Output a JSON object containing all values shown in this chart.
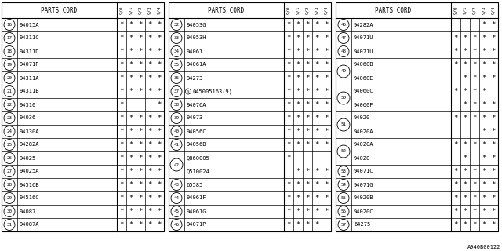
{
  "watermark": "A940B00122",
  "bg_color": "#ffffff",
  "col_headers": [
    "9/0",
    "9/1",
    "9/2",
    "9/3",
    "9/4"
  ],
  "panels": [
    {
      "rows": [
        {
          "num": "16",
          "part": "94015A",
          "marks": [
            1,
            1,
            1,
            1,
            1
          ],
          "group_start": true,
          "group_size": 1
        },
        {
          "num": "17",
          "part": "94311C",
          "marks": [
            1,
            1,
            1,
            1,
            1
          ],
          "group_start": true,
          "group_size": 1
        },
        {
          "num": "18",
          "part": "94311D",
          "marks": [
            1,
            1,
            1,
            1,
            1
          ],
          "group_start": true,
          "group_size": 1
        },
        {
          "num": "19",
          "part": "94071P",
          "marks": [
            1,
            1,
            1,
            1,
            1
          ],
          "group_start": true,
          "group_size": 1
        },
        {
          "num": "20",
          "part": "94311A",
          "marks": [
            1,
            1,
            1,
            1,
            1
          ],
          "group_start": true,
          "group_size": 1
        },
        {
          "num": "21",
          "part": "94311B",
          "marks": [
            1,
            1,
            1,
            1,
            1
          ],
          "group_start": true,
          "group_size": 1
        },
        {
          "num": "22",
          "part": "94310",
          "marks": [
            1,
            0,
            0,
            0,
            1
          ],
          "group_start": true,
          "group_size": 1
        },
        {
          "num": "23",
          "part": "94036",
          "marks": [
            1,
            1,
            1,
            1,
            1
          ],
          "group_start": true,
          "group_size": 1
        },
        {
          "num": "24",
          "part": "94330A",
          "marks": [
            1,
            1,
            1,
            1,
            1
          ],
          "group_start": true,
          "group_size": 1
        },
        {
          "num": "25",
          "part": "94282A",
          "marks": [
            1,
            1,
            1,
            1,
            1
          ],
          "group_start": true,
          "group_size": 1
        },
        {
          "num": "26",
          "part": "94025",
          "marks": [
            1,
            1,
            1,
            1,
            1
          ],
          "group_start": true,
          "group_size": 1
        },
        {
          "num": "27",
          "part": "94025A",
          "marks": [
            1,
            1,
            1,
            1,
            1
          ],
          "group_start": true,
          "group_size": 1
        },
        {
          "num": "28",
          "part": "94516B",
          "marks": [
            1,
            1,
            1,
            1,
            1
          ],
          "group_start": true,
          "group_size": 1
        },
        {
          "num": "29",
          "part": "94516C",
          "marks": [
            1,
            1,
            1,
            1,
            1
          ],
          "group_start": true,
          "group_size": 1
        },
        {
          "num": "30",
          "part": "94087",
          "marks": [
            1,
            1,
            1,
            1,
            1
          ],
          "group_start": true,
          "group_size": 1
        },
        {
          "num": "31",
          "part": "94087A",
          "marks": [
            1,
            1,
            1,
            1,
            1
          ],
          "group_start": true,
          "group_size": 1
        }
      ]
    },
    {
      "rows": [
        {
          "num": "32",
          "part": "94053G",
          "marks": [
            1,
            1,
            1,
            1,
            1
          ],
          "group_start": true,
          "group_size": 1,
          "special": false
        },
        {
          "num": "33",
          "part": "94053H",
          "marks": [
            1,
            1,
            1,
            1,
            1
          ],
          "group_start": true,
          "group_size": 1,
          "special": false
        },
        {
          "num": "34",
          "part": "94061",
          "marks": [
            1,
            1,
            1,
            1,
            1
          ],
          "group_start": true,
          "group_size": 1,
          "special": false
        },
        {
          "num": "35",
          "part": "94061A",
          "marks": [
            1,
            1,
            1,
            1,
            1
          ],
          "group_start": true,
          "group_size": 1,
          "special": false
        },
        {
          "num": "36",
          "part": "94273",
          "marks": [
            1,
            1,
            1,
            1,
            1
          ],
          "group_start": true,
          "group_size": 1,
          "special": false
        },
        {
          "num": "37",
          "part": "045005163(9)",
          "marks": [
            1,
            1,
            1,
            1,
            1
          ],
          "group_start": true,
          "group_size": 1,
          "special": true
        },
        {
          "num": "38",
          "part": "94076A",
          "marks": [
            1,
            1,
            1,
            1,
            1
          ],
          "group_start": true,
          "group_size": 1,
          "special": false
        },
        {
          "num": "39",
          "part": "94073",
          "marks": [
            1,
            1,
            1,
            1,
            1
          ],
          "group_start": true,
          "group_size": 1,
          "special": false
        },
        {
          "num": "40",
          "part": "94056C",
          "marks": [
            1,
            1,
            1,
            1,
            1
          ],
          "group_start": true,
          "group_size": 1,
          "special": false
        },
        {
          "num": "41",
          "part": "94056B",
          "marks": [
            1,
            1,
            1,
            1,
            1
          ],
          "group_start": true,
          "group_size": 1,
          "special": false
        },
        {
          "num": "42",
          "part": "Q860005",
          "marks": [
            1,
            0,
            0,
            0,
            0
          ],
          "group_start": true,
          "group_size": 2,
          "special": false
        },
        {
          "num": "42",
          "part": "Q510024",
          "marks": [
            0,
            1,
            1,
            1,
            1
          ],
          "group_start": false,
          "group_size": 2,
          "special": false
        },
        {
          "num": "43",
          "part": "65585",
          "marks": [
            1,
            1,
            1,
            1,
            1
          ],
          "group_start": true,
          "group_size": 1,
          "special": false
        },
        {
          "num": "44",
          "part": "94061F",
          "marks": [
            1,
            1,
            1,
            1,
            1
          ],
          "group_start": true,
          "group_size": 1,
          "special": false
        },
        {
          "num": "45",
          "part": "94061G",
          "marks": [
            1,
            1,
            1,
            1,
            1
          ],
          "group_start": true,
          "group_size": 1,
          "special": false
        },
        {
          "num": "46",
          "part": "94071P",
          "marks": [
            1,
            1,
            1,
            1,
            0
          ],
          "group_start": true,
          "group_size": 1,
          "special": false
        }
      ]
    },
    {
      "rows": [
        {
          "num": "46",
          "part": "94282A",
          "marks": [
            0,
            0,
            0,
            1,
            1
          ],
          "group_start": true,
          "group_size": 1
        },
        {
          "num": "47",
          "part": "94071U",
          "marks": [
            1,
            1,
            1,
            1,
            1
          ],
          "group_start": true,
          "group_size": 1
        },
        {
          "num": "48",
          "part": "94071U",
          "marks": [
            1,
            1,
            1,
            1,
            1
          ],
          "group_start": true,
          "group_size": 1
        },
        {
          "num": "49",
          "part": "94060B",
          "marks": [
            1,
            1,
            1,
            1,
            1
          ],
          "group_start": true,
          "group_size": 2
        },
        {
          "num": "49",
          "part": "94060E",
          "marks": [
            0,
            1,
            1,
            1,
            1
          ],
          "group_start": false,
          "group_size": 2
        },
        {
          "num": "50",
          "part": "94060C",
          "marks": [
            1,
            1,
            1,
            1,
            0
          ],
          "group_start": true,
          "group_size": 2
        },
        {
          "num": "50",
          "part": "94060F",
          "marks": [
            0,
            1,
            1,
            1,
            1
          ],
          "group_start": false,
          "group_size": 2
        },
        {
          "num": "51",
          "part": "94020",
          "marks": [
            1,
            1,
            1,
            1,
            1
          ],
          "group_start": true,
          "group_size": 2
        },
        {
          "num": "51",
          "part": "94020A",
          "marks": [
            0,
            0,
            0,
            1,
            1
          ],
          "group_start": false,
          "group_size": 2
        },
        {
          "num": "52",
          "part": "94020A",
          "marks": [
            1,
            1,
            1,
            1,
            1
          ],
          "group_start": true,
          "group_size": 2
        },
        {
          "num": "52",
          "part": "94020",
          "marks": [
            0,
            1,
            0,
            1,
            1
          ],
          "group_start": false,
          "group_size": 2
        },
        {
          "num": "53",
          "part": "94071C",
          "marks": [
            1,
            1,
            1,
            1,
            1
          ],
          "group_start": true,
          "group_size": 1
        },
        {
          "num": "54",
          "part": "94071G",
          "marks": [
            1,
            1,
            1,
            1,
            1
          ],
          "group_start": true,
          "group_size": 1
        },
        {
          "num": "55",
          "part": "94020B",
          "marks": [
            1,
            1,
            1,
            1,
            1
          ],
          "group_start": true,
          "group_size": 1
        },
        {
          "num": "56",
          "part": "94020C",
          "marks": [
            1,
            1,
            1,
            1,
            1
          ],
          "group_start": true,
          "group_size": 1
        },
        {
          "num": "57",
          "part": "64275",
          "marks": [
            1,
            1,
            1,
            1,
            1
          ],
          "group_start": true,
          "group_size": 1
        }
      ]
    }
  ]
}
